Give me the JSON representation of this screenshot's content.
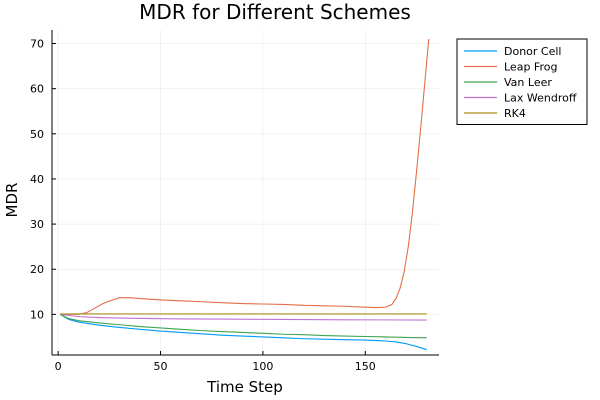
{
  "chart_data": {
    "type": "line",
    "title": "MDR for Different Schemes",
    "xlabel": "Time Step",
    "ylabel": "MDR",
    "xlim": [
      -3,
      186
    ],
    "ylim": [
      1,
      73
    ],
    "xticks": [
      0,
      50,
      100,
      150
    ],
    "yticks": [
      10,
      20,
      30,
      40,
      50,
      60,
      70
    ],
    "grid": true,
    "legend_position": "top-right outside",
    "series": [
      {
        "name": "Donor Cell",
        "color": "#009AFA",
        "x": [
          1,
          5,
          10,
          20,
          30,
          40,
          50,
          60,
          70,
          80,
          90,
          100,
          110,
          120,
          130,
          140,
          150,
          160,
          165,
          170,
          175,
          180
        ],
        "y": [
          10.0,
          8.9,
          8.3,
          7.6,
          7.1,
          6.7,
          6.3,
          6.0,
          5.7,
          5.4,
          5.2,
          5.0,
          4.8,
          4.6,
          4.5,
          4.4,
          4.3,
          4.1,
          3.9,
          3.5,
          2.9,
          2.2
        ]
      },
      {
        "name": "Leap Frog",
        "color": "#E36F47",
        "x": [
          1,
          5,
          10,
          14,
          18,
          22,
          26,
          30,
          35,
          40,
          50,
          60,
          70,
          80,
          90,
          100,
          110,
          120,
          130,
          140,
          150,
          155,
          160,
          163,
          165,
          167,
          169,
          171,
          173,
          175,
          177,
          179,
          181
        ],
        "y": [
          10.0,
          10.0,
          10.0,
          10.4,
          11.4,
          12.4,
          13.1,
          13.7,
          13.7,
          13.5,
          13.2,
          13.0,
          12.8,
          12.6,
          12.4,
          12.3,
          12.2,
          12.0,
          11.9,
          11.8,
          11.6,
          11.5,
          11.6,
          12.2,
          13.5,
          15.8,
          19.5,
          25.0,
          32.5,
          41.5,
          51.0,
          61.0,
          71.0
        ]
      },
      {
        "name": "Van Leer",
        "color": "#3EA44E",
        "x": [
          1,
          5,
          10,
          20,
          30,
          40,
          50,
          60,
          70,
          80,
          90,
          100,
          110,
          120,
          130,
          140,
          150,
          160,
          170,
          180
        ],
        "y": [
          10.0,
          9.1,
          8.6,
          8.1,
          7.7,
          7.3,
          7.0,
          6.7,
          6.4,
          6.2,
          6.0,
          5.8,
          5.6,
          5.5,
          5.3,
          5.2,
          5.1,
          5.0,
          4.9,
          4.8
        ]
      },
      {
        "name": "Lax Wendroff",
        "color": "#C271D2",
        "x": [
          1,
          10,
          20,
          40,
          60,
          80,
          100,
          120,
          140,
          160,
          180
        ],
        "y": [
          10.0,
          9.5,
          9.3,
          9.1,
          9.0,
          8.95,
          8.9,
          8.85,
          8.8,
          8.78,
          8.75
        ]
      },
      {
        "name": "RK4",
        "color": "#AC8D18",
        "x": [
          1,
          180
        ],
        "y": [
          10.1,
          10.1
        ]
      }
    ]
  }
}
